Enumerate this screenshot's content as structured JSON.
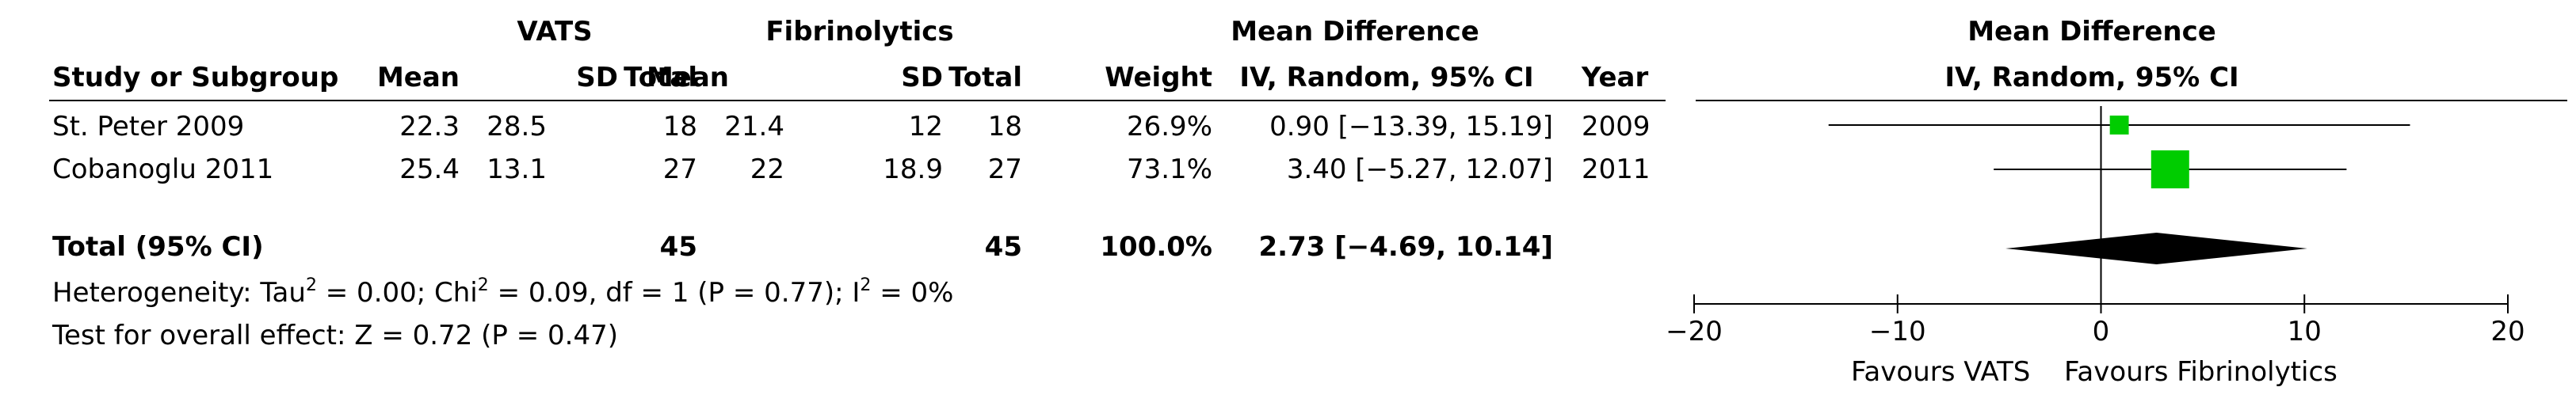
{
  "headers": {
    "group1": "VATS",
    "group2": "Fibrinolytics",
    "md_top": "Mean Difference",
    "study": "Study or Subgroup",
    "mean": "Mean",
    "sd": "SD",
    "total": "Total",
    "weight": "Weight",
    "md_method": "IV, Random, 95% CI",
    "year": "Year",
    "plot_top": "Mean Difference",
    "plot_method": "IV, Random, 95% CI"
  },
  "studies": [
    {
      "name": "St. Peter 2009",
      "mean1": "22.3",
      "sd1": "28.5",
      "n1": "18",
      "mean2": "21.4",
      "sd2": "12",
      "n2": "18",
      "weight": "26.9%",
      "ci_text": "0.90 [−13.39, 15.19]",
      "year": "2009"
    },
    {
      "name": "Cobanoglu 2011",
      "mean1": "25.4",
      "sd1": "13.1",
      "n1": "27",
      "mean2": "22",
      "sd2": "18.9",
      "n2": "27",
      "weight": "73.1%",
      "ci_text": "3.40 [−5.27, 12.07]",
      "year": "2011"
    }
  ],
  "total": {
    "label": "Total (95% CI)",
    "n1": "45",
    "n2": "45",
    "weight": "100.0%",
    "ci_text": "2.73 [−4.69, 10.14]"
  },
  "heterogeneity": {
    "prefix": "Heterogeneity: Tau",
    "tau_rest": " = 0.00; Chi",
    "chi_rest": " = 0.09, df = 1 (P = 0.77); I",
    "i_rest": " = 0%",
    "sup": "2"
  },
  "overall_effect": "Test for overall effect: Z = 0.72 (P = 0.47)",
  "axis": {
    "ticks": [
      -20,
      -10,
      0,
      10,
      20
    ],
    "tick_labels": [
      "−20",
      "−10",
      "0",
      "10",
      "20"
    ],
    "favours_left": "Favours VATS",
    "favours_right": "Favours Fibrinolytics"
  },
  "colors": {
    "marker": "#00cc00",
    "diamond": "#000000",
    "line": "#000000"
  },
  "chart_data": {
    "type": "forest",
    "xlim": [
      -20,
      20
    ],
    "studies": [
      {
        "name": "St. Peter 2009",
        "estimate": 0.9,
        "lower": -13.39,
        "upper": 15.19,
        "weight": 26.9
      },
      {
        "name": "Cobanoglu 2011",
        "estimate": 3.4,
        "lower": -5.27,
        "upper": 12.07,
        "weight": 73.1
      }
    ],
    "pooled": {
      "estimate": 2.73,
      "lower": -4.69,
      "upper": 10.14
    }
  }
}
